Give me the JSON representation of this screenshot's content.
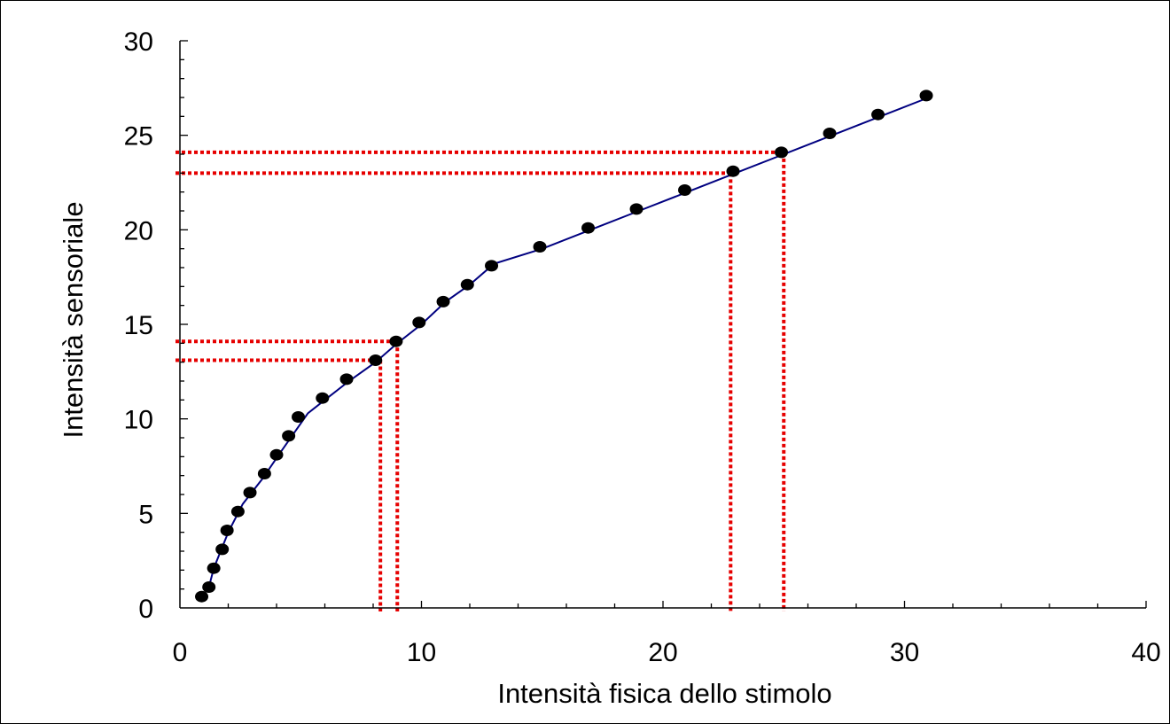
{
  "chart_data": {
    "type": "scatter",
    "xlabel": "Intensità fisica dello stimolo",
    "ylabel": "Intensità sensoriale",
    "xlim": [
      0,
      40
    ],
    "ylim": [
      0,
      30
    ],
    "x_ticks": [
      0,
      10,
      20,
      30,
      40
    ],
    "y_ticks": [
      0,
      5,
      10,
      15,
      20,
      25,
      30
    ],
    "x_tick_labels": [
      "0",
      "10",
      "20",
      "30",
      "40"
    ],
    "y_tick_labels": [
      "0",
      "5",
      "10",
      "15",
      "20",
      "25",
      "30"
    ],
    "grid": false,
    "colors": {
      "points": "#000000",
      "curve": "#000080",
      "guides": "#e60000",
      "axes": "#000000"
    },
    "series": [
      {
        "x": [
          0.9,
          1.2,
          1.4,
          1.75,
          1.95,
          2.4,
          2.9,
          3.5,
          4.0,
          4.5,
          4.9,
          5.9,
          6.9,
          8.1,
          8.95,
          9.9,
          10.9,
          11.9,
          12.9,
          14.9,
          16.9,
          18.9,
          20.9,
          22.9,
          24.9,
          26.9,
          28.9,
          30.9
        ],
        "y": [
          0.6,
          1.1,
          2.1,
          3.1,
          4.1,
          5.1,
          6.1,
          7.1,
          8.1,
          9.1,
          10.1,
          11.1,
          12.1,
          13.1,
          14.1,
          15.1,
          16.2,
          17.1,
          18.1,
          19.1,
          20.1,
          21.1,
          22.1,
          23.1,
          24.1,
          25.1,
          26.1,
          27.1
        ]
      }
    ],
    "curve": {
      "x": [
        1.2,
        1.4,
        2.0,
        2.6,
        3.4,
        4.2,
        5.3,
        6.0,
        7.0,
        8.1,
        9.0,
        10.0,
        11.0,
        12.0,
        13.0,
        15.0,
        17.0,
        19.0,
        21.0,
        23.0,
        25.0,
        27.0,
        29.0,
        31.0
      ],
      "y": [
        1.1,
        2.1,
        4.0,
        5.5,
        6.8,
        8.3,
        10.3,
        11.0,
        12.0,
        13.0,
        14.0,
        15.0,
        16.2,
        17.1,
        18.2,
        19.0,
        20.0,
        21.0,
        22.0,
        23.0,
        24.0,
        25.0,
        26.0,
        27.0
      ]
    },
    "guide_lines": [
      {
        "x": 8.3,
        "y": 13.1
      },
      {
        "x": 9.0,
        "y": 14.1
      },
      {
        "x": 22.8,
        "y": 23.0
      },
      {
        "x": 25.0,
        "y": 24.1
      }
    ]
  }
}
